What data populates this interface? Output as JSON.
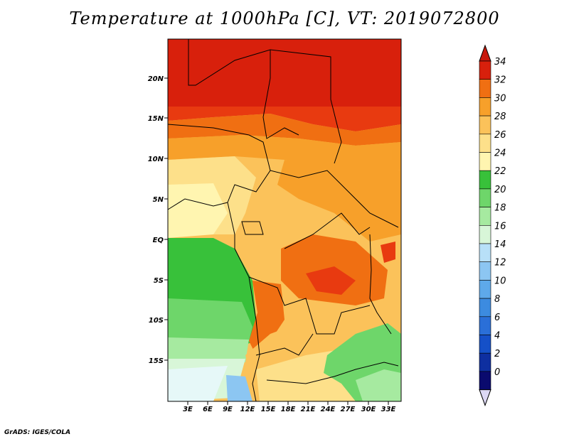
{
  "title": "Temperature at 1000hPa [C], VT: 2019072800",
  "footer": "GrADS: IGES/COLA",
  "map": {
    "lat_labels": [
      "20N",
      "15N",
      "10N",
      "5N",
      "EQ",
      "5S",
      "10S",
      "15S"
    ],
    "lon_labels": [
      "3E",
      "6E",
      "9E",
      "12E",
      "15E",
      "18E",
      "21E",
      "24E",
      "27E",
      "30E",
      "33E"
    ]
  },
  "colorbar": {
    "labels": [
      "0",
      "2",
      "4",
      "6",
      "8",
      "10",
      "12",
      "14",
      "16",
      "18",
      "20",
      "22",
      "24",
      "26",
      "28",
      "30",
      "32",
      "34"
    ],
    "colors": [
      "#0a0a6e",
      "#0e2fa0",
      "#1550c8",
      "#2a6fd8",
      "#3c8be0",
      "#5ea9ea",
      "#8cc6f2",
      "#b8e0f8",
      "#d8f6d8",
      "#a6eaa0",
      "#6ed66a",
      "#38c13a",
      "#fff5b0",
      "#fde08a",
      "#fbc25a",
      "#f7a02a",
      "#f06f12",
      "#d8200c"
    ],
    "over_color": "#c8180c",
    "under_color": "#dcd8f4"
  }
}
